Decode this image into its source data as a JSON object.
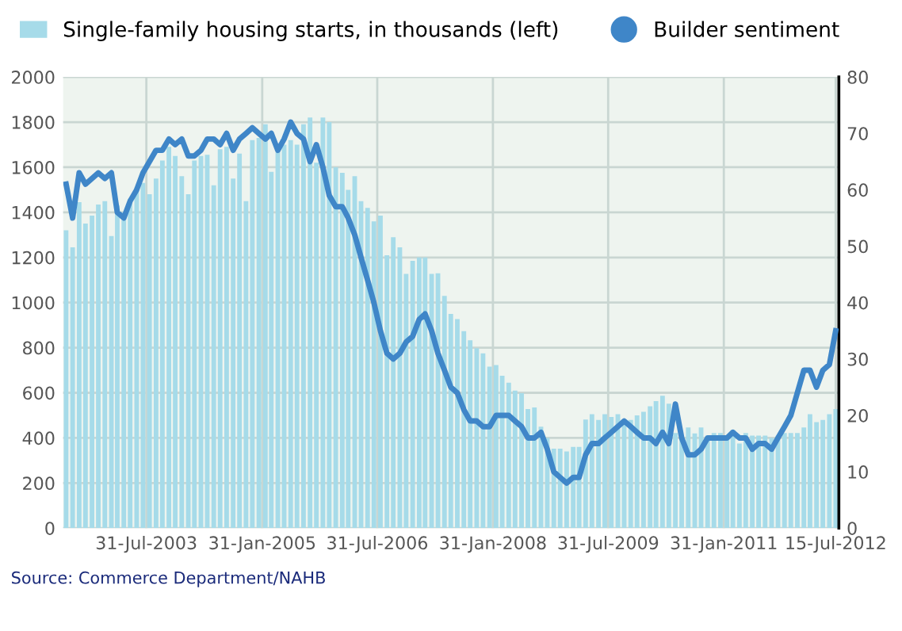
{
  "chart_data": {
    "type": "bar",
    "x": [
      "2002-07-15",
      "2002-08-15",
      "2002-09-15",
      "2002-10-15",
      "2002-11-15",
      "2002-12-15",
      "2003-01-15",
      "2003-02-15",
      "2003-03-15",
      "2003-04-15",
      "2003-05-15",
      "2003-06-15",
      "2003-07-15",
      "2003-08-15",
      "2003-09-15",
      "2003-10-15",
      "2003-11-15",
      "2003-12-15",
      "2004-01-15",
      "2004-02-15",
      "2004-03-15",
      "2004-04-15",
      "2004-05-15",
      "2004-06-15",
      "2004-07-15",
      "2004-08-15",
      "2004-09-15",
      "2004-10-15",
      "2004-11-15",
      "2004-12-15",
      "2005-01-15",
      "2005-02-15",
      "2005-03-15",
      "2005-04-15",
      "2005-05-15",
      "2005-06-15",
      "2005-07-15",
      "2005-08-15",
      "2005-09-15",
      "2005-10-15",
      "2005-11-15",
      "2005-12-15",
      "2006-01-15",
      "2006-02-15",
      "2006-03-15",
      "2006-04-15",
      "2006-05-15",
      "2006-06-15",
      "2006-07-15",
      "2006-08-15",
      "2006-09-15",
      "2006-10-15",
      "2006-11-15",
      "2006-12-15",
      "2007-01-15",
      "2007-02-15",
      "2007-03-15",
      "2007-04-15",
      "2007-05-15",
      "2007-06-15",
      "2007-07-15",
      "2007-08-15",
      "2007-09-15",
      "2007-10-15",
      "2007-11-15",
      "2007-12-15",
      "2008-01-15",
      "2008-02-15",
      "2008-03-15",
      "2008-04-15",
      "2008-05-15",
      "2008-06-15",
      "2008-07-15",
      "2008-08-15",
      "2008-09-15",
      "2008-10-15",
      "2008-11-15",
      "2008-12-15",
      "2009-01-15",
      "2009-02-15",
      "2009-03-15",
      "2009-04-15",
      "2009-05-15",
      "2009-06-15",
      "2009-07-15",
      "2009-08-15",
      "2009-09-15",
      "2009-10-15",
      "2009-11-15",
      "2009-12-15",
      "2010-01-15",
      "2010-02-15",
      "2010-03-15",
      "2010-04-15",
      "2010-05-15",
      "2010-06-15",
      "2010-07-15",
      "2010-08-15",
      "2010-09-15",
      "2010-10-15",
      "2010-11-15",
      "2010-12-15",
      "2011-01-15",
      "2011-02-15",
      "2011-03-15",
      "2011-04-15",
      "2011-05-15",
      "2011-06-15",
      "2011-07-15",
      "2011-08-15",
      "2011-09-15",
      "2011-10-15",
      "2011-11-15",
      "2011-12-15",
      "2012-01-15",
      "2012-02-15",
      "2012-03-15",
      "2012-04-15",
      "2012-05-15",
      "2012-06-15",
      "2012-07-15"
    ],
    "series": [
      {
        "name": "Single-family housing starts, in thousands (left)",
        "color": "#a6dbe9",
        "values": [
          1320,
          1245,
          1445,
          1350,
          1385,
          1435,
          1450,
          1295,
          1430,
          1400,
          1460,
          1510,
          1530,
          1480,
          1550,
          1630,
          1690,
          1650,
          1560,
          1480,
          1630,
          1650,
          1655,
          1520,
          1680,
          1690,
          1550,
          1660,
          1450,
          1720,
          1730,
          1790,
          1580,
          1690,
          1700,
          1720,
          1700,
          1790,
          1820,
          1620,
          1820,
          1800,
          1600,
          1575,
          1500,
          1560,
          1450,
          1420,
          1360,
          1385,
          1210,
          1290,
          1245,
          1127,
          1185,
          1200,
          1200,
          1127,
          1130,
          1030,
          950,
          927,
          873,
          833,
          798,
          775,
          716,
          723,
          676,
          645,
          610,
          598,
          528,
          535,
          450,
          400,
          352,
          352,
          340,
          360,
          360,
          481,
          505,
          480,
          505,
          493,
          505,
          470,
          480,
          500,
          516,
          540,
          563,
          587,
          552,
          422,
          399,
          446,
          420,
          446,
          410,
          422,
          422,
          399,
          435,
          375,
          422,
          410,
          410,
          410,
          400,
          410,
          422,
          422,
          422,
          446,
          505,
          470,
          480,
          505,
          528
        ]
      },
      {
        "name": "Builder sentiment",
        "type": "line",
        "axis": "y2",
        "color": "#3f86c8",
        "values": [
          61,
          55,
          63,
          61,
          62,
          63,
          62,
          63,
          56,
          55,
          58,
          60,
          63,
          65,
          67,
          67,
          69,
          68,
          69,
          66,
          66,
          67,
          69,
          69,
          68,
          70,
          67,
          69,
          70,
          71,
          70,
          69,
          70,
          67,
          69,
          72,
          70,
          69,
          65,
          68,
          64,
          59,
          57,
          57,
          55,
          52,
          48,
          44,
          40,
          35,
          31,
          30,
          31,
          33,
          34,
          37,
          38,
          35,
          31,
          28,
          25,
          24,
          21,
          19,
          19,
          18,
          18,
          20,
          20,
          20,
          19,
          18,
          16,
          16,
          17,
          14,
          10,
          9,
          8,
          9,
          9,
          13,
          15,
          15,
          16,
          17,
          18,
          19,
          18,
          17,
          16,
          16,
          15,
          17,
          15,
          22,
          16,
          13,
          13,
          14,
          16,
          16,
          16,
          16,
          17,
          16,
          16,
          14,
          15,
          15,
          14,
          16,
          18,
          20,
          24,
          28,
          28,
          25,
          28,
          29,
          35
        ]
      }
    ],
    "xlim": [
      "2002-07-01",
      "2012-07-30"
    ],
    "xticks": [
      {
        "value": "2003-07-31",
        "label": "31-Jul-2003"
      },
      {
        "value": "2005-01-31",
        "label": "31-Jan-2005"
      },
      {
        "value": "2006-07-31",
        "label": "31-Jul-2006"
      },
      {
        "value": "2008-01-31",
        "label": "31-Jan-2008"
      },
      {
        "value": "2009-07-31",
        "label": "31-Jul-2009"
      },
      {
        "value": "2011-01-31",
        "label": "31-Jan-2011"
      },
      {
        "value": "2012-07-15",
        "label": "15-Jul-2012"
      }
    ],
    "ylim": [
      0,
      2000
    ],
    "yticks": [
      0,
      200,
      400,
      600,
      800,
      1000,
      1200,
      1400,
      1600,
      1800,
      2000
    ],
    "y2lim": [
      0,
      80
    ],
    "y2ticks": [
      0,
      10,
      20,
      30,
      40,
      50,
      60,
      70,
      80
    ],
    "grid": true,
    "legend": "top",
    "annotations": [
      "Source: Commerce Department/NAHB"
    ]
  }
}
